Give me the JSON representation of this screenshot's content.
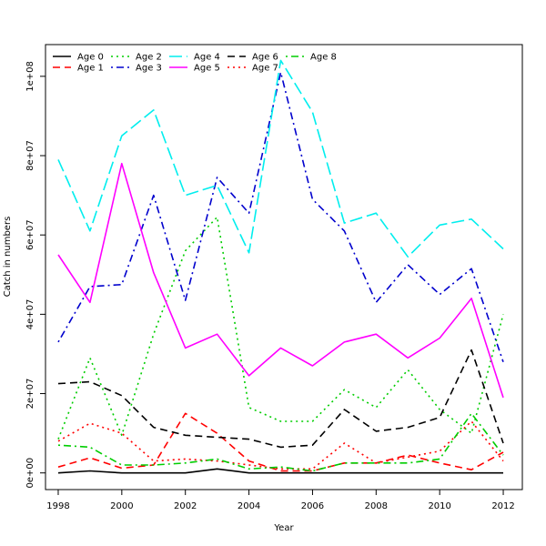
{
  "chart_data": {
    "type": "line",
    "title": "",
    "xlabel": "Year",
    "ylabel": "Catch in numbers",
    "xlim": [
      1997.6,
      2012.6
    ],
    "ylim": [
      -4200000,
      108000000
    ],
    "x_ticks": [
      1998,
      2000,
      2002,
      2004,
      2006,
      2008,
      2010,
      2012
    ],
    "x_tick_labels": [
      "1998",
      "2000",
      "2002",
      "2004",
      "2006",
      "2008",
      "2010",
      "2012"
    ],
    "y_ticks": [
      0,
      20000000,
      40000000,
      60000000,
      80000000,
      100000000
    ],
    "y_tick_labels": [
      "0e+00",
      "2e+07",
      "4e+07",
      "6e+07",
      "8e+07",
      "1e+08"
    ],
    "grid": false,
    "legend_position": "top-left",
    "x": [
      1998,
      1999,
      2000,
      2001,
      2002,
      2003,
      2004,
      2005,
      2006,
      2007,
      2008,
      2009,
      2010,
      2011,
      2012
    ],
    "series": [
      {
        "name": "Age 0",
        "color": "#000000",
        "dash": "solid",
        "values": [
          0,
          500000,
          0,
          0,
          0,
          1000000,
          0,
          0,
          0,
          0,
          0,
          0,
          0,
          0,
          0
        ]
      },
      {
        "name": "Age 1",
        "color": "#ff0000",
        "dash": "dashed",
        "values": [
          1500000,
          3800000,
          1200000,
          2000000,
          15000000,
          10000000,
          3000000,
          500000,
          500000,
          2500000,
          2500000,
          4500000,
          2500000,
          800000,
          5200000
        ]
      },
      {
        "name": "Age 2",
        "color": "#00cd00",
        "dash": "dotted",
        "values": [
          8500000,
          29000000,
          9500000,
          35000000,
          56000000,
          64500000,
          16500000,
          13000000,
          13000000,
          21000000,
          16500000,
          26000000,
          16000000,
          10000000,
          40000000
        ]
      },
      {
        "name": "Age 3",
        "color": "#0000cd",
        "dash": "dotdash",
        "values": [
          33000000,
          47000000,
          47500000,
          70000000,
          43500000,
          74500000,
          65500000,
          101000000,
          69000000,
          61000000,
          43000000,
          52500000,
          45000000,
          51500000,
          28000000
        ]
      },
      {
        "name": "Age 4",
        "color": "#00eeee",
        "dash": "longdash",
        "values": [
          79000000,
          61000000,
          85000000,
          91500000,
          70000000,
          72500000,
          55500000,
          104000000,
          91000000,
          63000000,
          65500000,
          54500000,
          62500000,
          64000000,
          56500000
        ]
      },
      {
        "name": "Age 5",
        "color": "#ff00ff",
        "dash": "solid",
        "values": [
          55000000,
          43000000,
          78000000,
          50500000,
          31500000,
          35000000,
          24500000,
          31500000,
          27000000,
          33000000,
          35000000,
          29000000,
          34000000,
          44000000,
          19000000
        ]
      },
      {
        "name": "Age 6",
        "color": "#000000",
        "dash": "dashed",
        "values": [
          22500000,
          23000000,
          19500000,
          11500000,
          9500000,
          9000000,
          8500000,
          6500000,
          7000000,
          16000000,
          10500000,
          11500000,
          14000000,
          31000000,
          7500000
        ]
      },
      {
        "name": "Age 7",
        "color": "#ff0000",
        "dash": "dotted",
        "values": [
          8000000,
          12500000,
          10000000,
          3000000,
          3500000,
          3000000,
          2000000,
          1000000,
          1000000,
          7500000,
          2500000,
          4000000,
          5500000,
          13000000,
          3000000
        ]
      },
      {
        "name": "Age 8",
        "color": "#00cd00",
        "dash": "dotdash",
        "values": [
          7000000,
          6500000,
          2000000,
          2000000,
          2500000,
          3500000,
          1000000,
          1500000,
          500000,
          2500000,
          2500000,
          2500000,
          3500000,
          15000000,
          4500000
        ]
      }
    ]
  }
}
